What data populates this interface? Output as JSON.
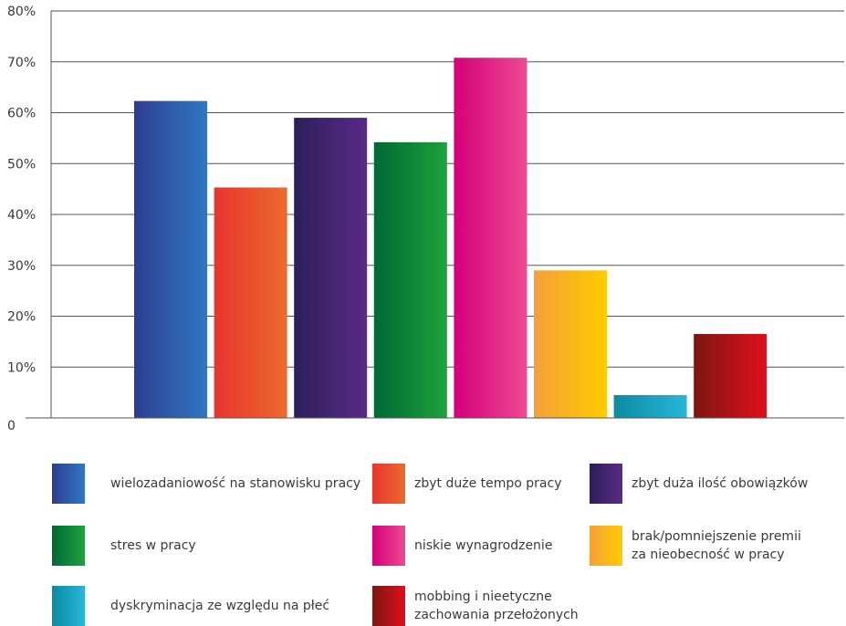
{
  "chart_data": {
    "type": "bar",
    "title": "",
    "xlabel": "",
    "ylabel": "",
    "ylim": [
      0,
      80
    ],
    "yticks": [
      0,
      10,
      20,
      30,
      40,
      50,
      60,
      70,
      80
    ],
    "ytick_labels": [
      "0",
      "10%",
      "20%",
      "30%",
      "40%",
      "50%",
      "60%",
      "70%",
      "80%"
    ],
    "grid": true,
    "legend_position": "bottom",
    "categories": [
      "wielozadaniowość na stanowisku pracy",
      "zbyt duże tempo pracy",
      "zbyt duża ilość obowiązków",
      "stres w pracy",
      "niskie wynagrodzenie",
      "brak/pomniejszenie premii\nza nieobecność w pracy",
      "dyskryminacja ze względu na płeć",
      "mobbing i nieetyczne\nzachowania przełożonych"
    ],
    "values": [
      62.3,
      45.3,
      59.0,
      54.2,
      70.8,
      29.0,
      4.5,
      16.5
    ],
    "colors": [
      [
        "#2e3d8f",
        "#2f78c4"
      ],
      [
        "#e73530",
        "#ec6a2d"
      ],
      [
        "#2d1f5a",
        "#5a2a87"
      ],
      [
        "#006935",
        "#1fa23c"
      ],
      [
        "#d3007a",
        "#ee4a93"
      ],
      [
        "#f4a03a",
        "#ffcc00"
      ],
      [
        "#0d8aa0",
        "#27b7d9"
      ],
      [
        "#7a1712",
        "#e10f1c"
      ]
    ]
  }
}
